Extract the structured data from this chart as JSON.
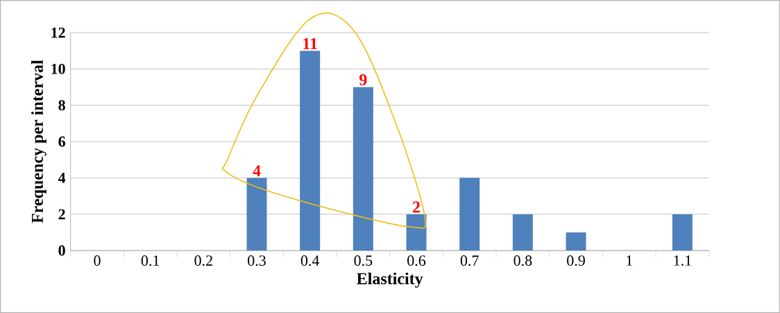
{
  "chart_data": {
    "type": "bar",
    "xlabel": "Elasticity",
    "ylabel": "Frequency  per interval",
    "categories": [
      "0",
      "0.1",
      "0.2",
      "0.3",
      "0.4",
      "0.5",
      "0.6",
      "0.7",
      "0.8",
      "0.9",
      "1",
      "1.1"
    ],
    "values": [
      0,
      0,
      0,
      4,
      11,
      9,
      2,
      4,
      2,
      1,
      0,
      2
    ],
    "value_labels": [
      null,
      null,
      null,
      "4",
      "11",
      "9",
      "2",
      null,
      null,
      null,
      null,
      null
    ],
    "color": "#4f81bd",
    "ylim": [
      0,
      12
    ],
    "yticks": [
      0,
      2,
      4,
      6,
      8,
      10,
      12
    ],
    "grid": "y"
  }
}
